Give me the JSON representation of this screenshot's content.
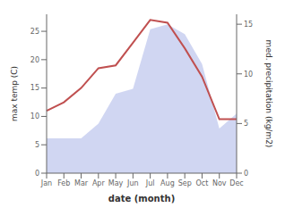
{
  "chart_data": {
    "type": "line",
    "xlabel": "date (month)",
    "ylabel": "max temp (C)",
    "y2label": "med. precipitation (kg/m2)",
    "categories": [
      "Jan",
      "Feb",
      "Mar",
      "Apr",
      "May",
      "Jun",
      "Jul",
      "Aug",
      "Sep",
      "Oct",
      "Nov",
      "Dec"
    ],
    "series": [
      {
        "type": "area",
        "axis": "y2",
        "color": "#aab4e8",
        "values": [
          3.5,
          3.5,
          3.5,
          5,
          8,
          8.5,
          14.5,
          15,
          14,
          11,
          4.5,
          6
        ]
      },
      {
        "type": "line",
        "color": "#c05050",
        "values": [
          11,
          12.5,
          15,
          18.5,
          19,
          23,
          27,
          26.5,
          22,
          17,
          9.5,
          9.5
        ]
      }
    ],
    "ylim": [
      0,
      28
    ],
    "yticks": [
      0,
      5,
      10,
      15,
      20,
      25
    ],
    "y2lim": [
      0,
      16
    ],
    "y2ticks": [
      0,
      5,
      10,
      15
    ]
  }
}
